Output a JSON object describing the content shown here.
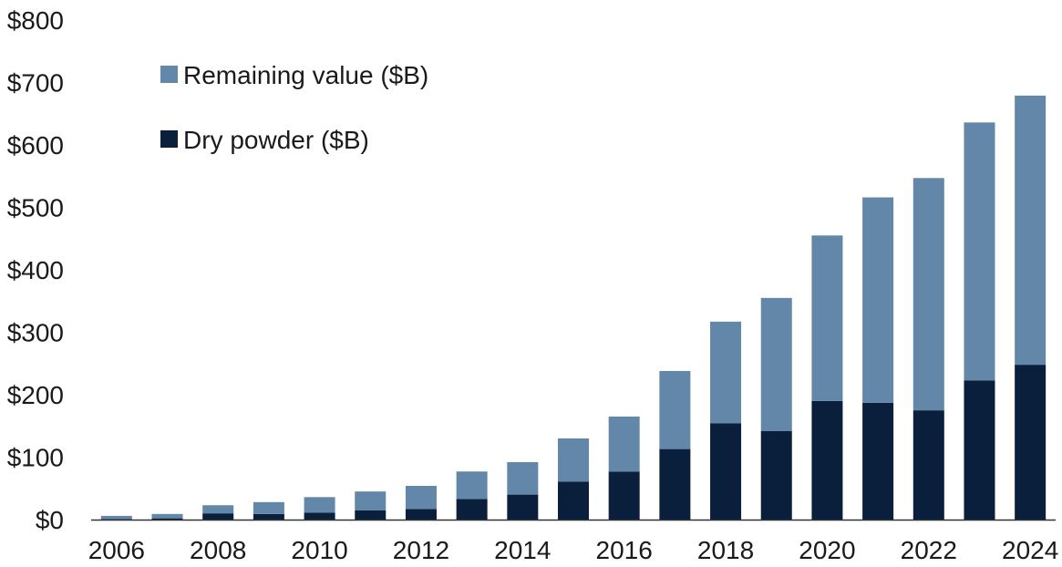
{
  "chart_data": {
    "type": "bar",
    "stacked": true,
    "title": "",
    "xlabel": "",
    "ylabel": "",
    "categories": [
      "2006",
      "2007",
      "2008",
      "2009",
      "2010",
      "2011",
      "2012",
      "2013",
      "2014",
      "2015",
      "2016",
      "2017",
      "2018",
      "2019",
      "2020",
      "2021",
      "2022",
      "2023",
      "2024"
    ],
    "x_tick_labels": [
      "2006",
      "2008",
      "2010",
      "2012",
      "2014",
      "2016",
      "2018",
      "2020",
      "2022",
      "2024"
    ],
    "ylim": [
      0,
      800
    ],
    "y_ticks": [
      0,
      100,
      200,
      300,
      400,
      500,
      600,
      700,
      800
    ],
    "y_tick_labels": [
      "$0",
      "$100",
      "$200",
      "$300",
      "$400",
      "$500",
      "$600",
      "$700",
      "$800"
    ],
    "grid": false,
    "legend_position": "top-left",
    "series": [
      {
        "name": "Dry powder ($B)",
        "color": "#0a1f3c",
        "values": [
          1,
          2,
          10,
          9,
          11,
          15,
          17,
          33,
          40,
          61,
          77,
          113,
          154,
          142,
          190,
          187,
          175,
          223,
          248
        ]
      },
      {
        "name": "Remaining value ($B)",
        "color": "#6287a8",
        "values": [
          5,
          7,
          13,
          19,
          25,
          30,
          37,
          44,
          52,
          69,
          88,
          125,
          163,
          213,
          265,
          329,
          372,
          413,
          431
        ]
      }
    ],
    "legend_order": [
      "Remaining value ($B)",
      "Dry powder ($B)"
    ]
  }
}
